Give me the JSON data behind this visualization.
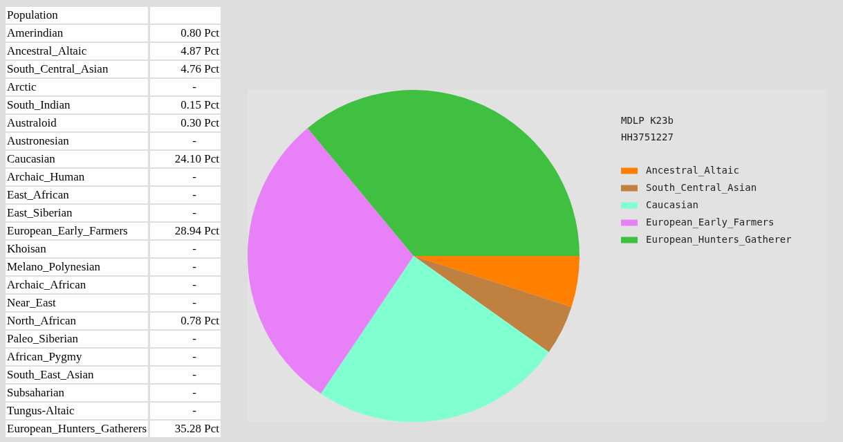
{
  "chart_data": [
    {
      "type": "other",
      "title": "Population",
      "categories": [
        "Amerindian",
        "Ancestral_Altaic",
        "South_Central_Asian",
        "Arctic",
        "South_Indian",
        "Australoid",
        "Austronesian",
        "Caucasian",
        "Archaic_Human",
        "East_African",
        "East_Siberian",
        "European_Early_Farmers",
        "Khoisan",
        "Melano_Polynesian",
        "Archaic_African",
        "Near_East",
        "North_African",
        "Paleo_Siberian",
        "African_Pygmy",
        "South_East_Asian",
        "Subsaharian",
        "Tungus-Altaic",
        "European_Hunters_Gatherers"
      ],
      "values": [
        0.8,
        4.87,
        4.76,
        null,
        0.15,
        0.3,
        null,
        24.1,
        null,
        null,
        null,
        28.94,
        null,
        null,
        null,
        null,
        0.78,
        null,
        null,
        null,
        null,
        null,
        35.28
      ],
      "value_labels": [
        "0.80 Pct",
        "4.87 Pct",
        "4.76 Pct",
        "-",
        "0.15 Pct",
        "0.30 Pct",
        "-",
        "24.10 Pct",
        "-",
        "-",
        "-",
        "28.94 Pct",
        "-",
        "-",
        "-",
        "-",
        "0.78 Pct",
        "-",
        "-",
        "-",
        "-",
        "-",
        "35.28 Pct"
      ]
    },
    {
      "type": "pie",
      "title": "MDLP K23b",
      "subtitle": "HH3751227",
      "categories": [
        "Ancestral_Altaic",
        "South_Central_Asian",
        "Caucasian",
        "European_Early_Farmers",
        "European_Hunters_Gatherer"
      ],
      "values": [
        4.97,
        4.86,
        24.6,
        29.55,
        36.02
      ],
      "colors": [
        "#ff8000",
        "#c08040",
        "#80ffd0",
        "#e880f8",
        "#40c040"
      ],
      "legend": "right"
    }
  ]
}
